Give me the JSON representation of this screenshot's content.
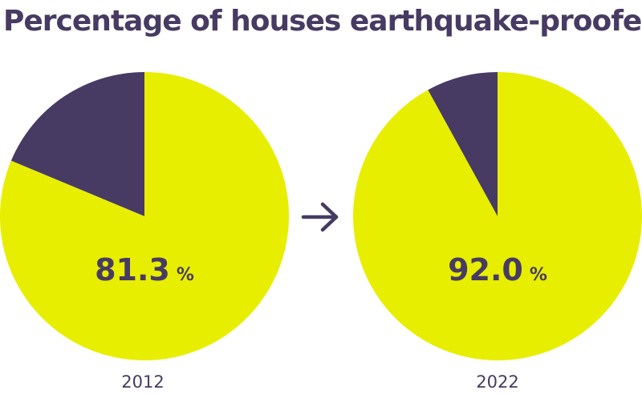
{
  "title": "Percentage of houses earthquake-proofed",
  "colors": {
    "proofed": "#e8ee00",
    "remaining": "#473b63",
    "text": "#473b63"
  },
  "arrow_icon": "right-arrow-icon",
  "chart_data": [
    {
      "type": "pie",
      "label": "2012",
      "value_text": "81.3",
      "unit": "%",
      "slices": [
        {
          "name": "proofed",
          "value": 81.3
        },
        {
          "name": "remaining",
          "value": 18.7
        }
      ]
    },
    {
      "type": "pie",
      "label": "2022",
      "value_text": "92.0",
      "unit": "%",
      "slices": [
        {
          "name": "proofed",
          "value": 92.0
        },
        {
          "name": "remaining",
          "value": 8.0
        }
      ]
    }
  ]
}
